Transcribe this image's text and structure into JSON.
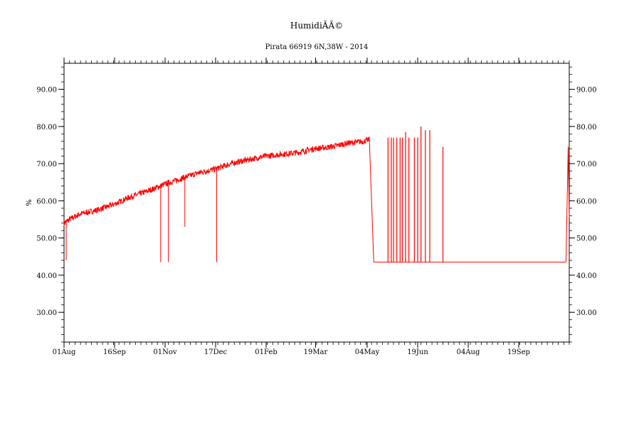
{
  "chart_data": {
    "type": "line",
    "title": "HumidiÃÃ©",
    "subtitle": "Pirata 66919 6N,38W - 2014",
    "ylabel": "%",
    "xlabel": "",
    "ylim": [
      22,
      97
    ],
    "yticks": [
      "30.00",
      "40.00",
      "50.00",
      "60.00",
      "70.00",
      "80.00",
      "90.00"
    ],
    "yticks_values": [
      30,
      40,
      50,
      60,
      70,
      80,
      90
    ],
    "xticks": [
      "01Aug",
      "16Sep",
      "01Nov",
      "17Dec",
      "01Feb",
      "19Mar",
      "04May",
      "19Jun",
      "04Aug",
      "19Sep"
    ],
    "x_range_days": [
      0,
      460
    ],
    "grid": false,
    "series": [
      {
        "color": "#ff0000",
        "x_days": [
          0,
          5,
          15,
          30,
          45,
          60,
          75,
          92,
          107,
          122,
          137,
          152,
          167,
          183,
          198,
          213,
          228,
          243,
          258,
          273,
          278
        ],
        "values": [
          54,
          55,
          56.5,
          57.5,
          59,
          61,
          62.5,
          64.5,
          66,
          67.5,
          68.5,
          70,
          71,
          72,
          72.5,
          73,
          74,
          74.5,
          75.5,
          76,
          76.5
        ],
        "dropouts_days": [
          2,
          88,
          95,
          110,
          139
        ],
        "dropout_values": [
          44,
          43.5,
          43.5,
          53,
          43.5
        ],
        "gap_fill_value": 43.5,
        "gap_range_days": [
          292,
          457
        ],
        "spikes_days": [
          295,
          298,
          300,
          303,
          306,
          308,
          311,
          314,
          319,
          322,
          325,
          329,
          333,
          345
        ],
        "spike_values": [
          77,
          77,
          77,
          77,
          77,
          77,
          78.5,
          77,
          77,
          77,
          80,
          79,
          79,
          74.5
        ],
        "end_days": [
          457,
          459,
          460
        ],
        "end_values": [
          43.5,
          74.5,
          55.5
        ]
      }
    ]
  }
}
